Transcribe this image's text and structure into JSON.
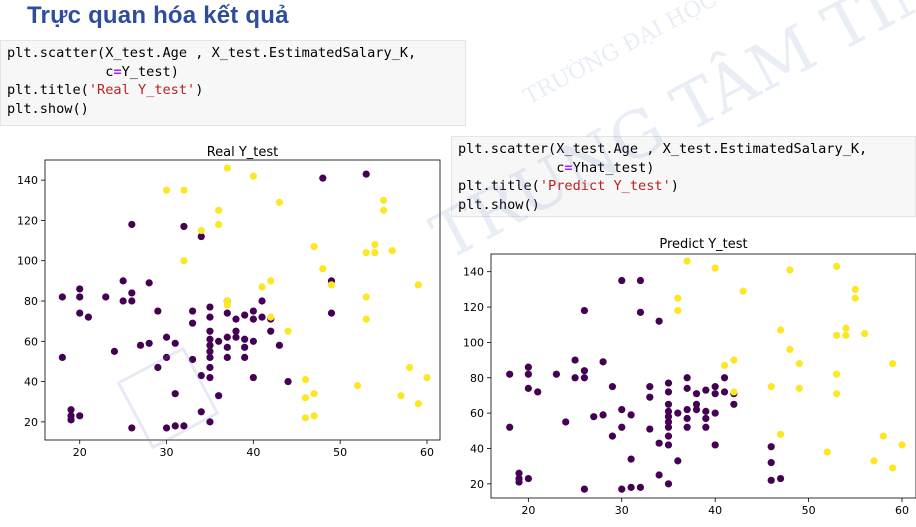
{
  "page": {
    "title": "Trực quan hóa kết quả"
  },
  "code_cells": [
    {
      "lines": [
        [
          {
            "t": "plain",
            "v": "plt.scatter(X_test.Age , X_test.EstimatedSalary_K,"
          }
        ],
        [
          {
            "t": "plain",
            "v": "            c"
          },
          {
            "t": "op",
            "v": "="
          },
          {
            "t": "plain",
            "v": "Y_test)"
          }
        ],
        [
          {
            "t": "plain",
            "v": "plt.title("
          },
          {
            "t": "str",
            "v": "'Real Y_test'"
          },
          {
            "t": "plain",
            "v": ")"
          }
        ],
        [
          {
            "t": "plain",
            "v": "plt.show()"
          }
        ]
      ]
    },
    {
      "lines": [
        [
          {
            "t": "plain",
            "v": "plt.scatter(X_test.Age , X_test.EstimatedSalary_K,"
          }
        ],
        [
          {
            "t": "plain",
            "v": "            c"
          },
          {
            "t": "op",
            "v": "="
          },
          {
            "t": "plain",
            "v": "Yhat_test)"
          }
        ],
        [
          {
            "t": "plain",
            "v": "plt.title("
          },
          {
            "t": "str",
            "v": "'Predict Y_test'"
          },
          {
            "t": "plain",
            "v": ")"
          }
        ],
        [
          {
            "t": "plain",
            "v": "plt.show()"
          }
        ]
      ]
    }
  ],
  "watermark": {
    "line1": "TRUNG TÂM TIN HỌC",
    "line2": "TRƯỜNG ĐẠI HỌC KHOA HỌC TỰ NHIÊN"
  },
  "colors": {
    "class0": "#440154",
    "class1": "#fde725",
    "title": "#2e4d9a"
  },
  "chart_data": [
    {
      "type": "scatter",
      "title": "Real Y_test",
      "xlabel": "",
      "ylabel": "",
      "xlim": [
        16,
        61.5
      ],
      "ylim": [
        11,
        150
      ],
      "xticks": [
        20,
        30,
        40,
        50,
        60
      ],
      "yticks": [
        20,
        40,
        60,
        80,
        100,
        120,
        140
      ],
      "grid": false,
      "legend": "none",
      "series": [
        {
          "class": 0,
          "points": [
            [
              18,
              82
            ],
            [
              18,
              52
            ],
            [
              19,
              26
            ],
            [
              19,
              21
            ],
            [
              19,
              23
            ],
            [
              20,
              86
            ],
            [
              20,
              82
            ],
            [
              20,
              74
            ],
            [
              20,
              23
            ],
            [
              21,
              72
            ],
            [
              23,
              82
            ],
            [
              24,
              55
            ],
            [
              25,
              90
            ],
            [
              25,
              80
            ],
            [
              26,
              84
            ],
            [
              26,
              80
            ],
            [
              26,
              118
            ],
            [
              26,
              17
            ],
            [
              27,
              58
            ],
            [
              28,
              89
            ],
            [
              28,
              59
            ],
            [
              29,
              75
            ],
            [
              29,
              47
            ],
            [
              30,
              62
            ],
            [
              30,
              17
            ],
            [
              30,
              52
            ],
            [
              31,
              59
            ],
            [
              31,
              34
            ],
            [
              31,
              18
            ],
            [
              32,
              117
            ],
            [
              32,
              18
            ],
            [
              33,
              75
            ],
            [
              33,
              51
            ],
            [
              33,
              69
            ],
            [
              34,
              112
            ],
            [
              34,
              43
            ],
            [
              34,
              25
            ],
            [
              35,
              77
            ],
            [
              35,
              72
            ],
            [
              35,
              65
            ],
            [
              35,
              61
            ],
            [
              35,
              58
            ],
            [
              35,
              55
            ],
            [
              35,
              52
            ],
            [
              35,
              47
            ],
            [
              35,
              42
            ],
            [
              35,
              20
            ],
            [
              36,
              60
            ],
            [
              36,
              33
            ],
            [
              37,
              80
            ],
            [
              37,
              74
            ],
            [
              37,
              62
            ],
            [
              37,
              57
            ],
            [
              37,
              52
            ],
            [
              38,
              71
            ],
            [
              38,
              62
            ],
            [
              38,
              65
            ],
            [
              39,
              73
            ],
            [
              39,
              61
            ],
            [
              39,
              57
            ],
            [
              39,
              52
            ],
            [
              40,
              75
            ],
            [
              40,
              71
            ],
            [
              40,
              60
            ],
            [
              40,
              42
            ],
            [
              41,
              72
            ],
            [
              41,
              80
            ],
            [
              42,
              65
            ],
            [
              42,
              71
            ],
            [
              43,
              58
            ],
            [
              44,
              40
            ],
            [
              48,
              141
            ],
            [
              49,
              90
            ],
            [
              49,
              74
            ],
            [
              53,
              143
            ]
          ]
        },
        {
          "class": 1,
          "points": [
            [
              30,
              135
            ],
            [
              32,
              135
            ],
            [
              32,
              100
            ],
            [
              34,
              115
            ],
            [
              36,
              118
            ],
            [
              36,
              125
            ],
            [
              37,
              146
            ],
            [
              37,
              80
            ],
            [
              37,
              78
            ],
            [
              40,
              142
            ],
            [
              41,
              87
            ],
            [
              42,
              90
            ],
            [
              42,
              72
            ],
            [
              43,
              129
            ],
            [
              44,
              65
            ],
            [
              46,
              22
            ],
            [
              46,
              32
            ],
            [
              46,
              41
            ],
            [
              47,
              23
            ],
            [
              47,
              107
            ],
            [
              47,
              34
            ],
            [
              48,
              96
            ],
            [
              49,
              88
            ],
            [
              52,
              38
            ],
            [
              53,
              104
            ],
            [
              53,
              71
            ],
            [
              53,
              82
            ],
            [
              54,
              104
            ],
            [
              54,
              108
            ],
            [
              55,
              130
            ],
            [
              55,
              125
            ],
            [
              56,
              105
            ],
            [
              57,
              33
            ],
            [
              58,
              47
            ],
            [
              59,
              29
            ],
            [
              59,
              88
            ],
            [
              60,
              42
            ]
          ]
        }
      ]
    },
    {
      "type": "scatter",
      "title": "Predict Y_test",
      "xlabel": "",
      "ylabel": "",
      "xlim": [
        16,
        61.5
      ],
      "ylim": [
        12,
        150
      ],
      "xticks": [
        20,
        30,
        40,
        50,
        60
      ],
      "yticks": [
        20,
        40,
        60,
        80,
        100,
        120,
        140
      ],
      "grid": false,
      "legend": "none",
      "series": [
        {
          "class": 0,
          "points": [
            [
              18,
              82
            ],
            [
              18,
              52
            ],
            [
              19,
              26
            ],
            [
              19,
              21
            ],
            [
              19,
              23
            ],
            [
              20,
              86
            ],
            [
              20,
              82
            ],
            [
              20,
              74
            ],
            [
              20,
              23
            ],
            [
              21,
              72
            ],
            [
              23,
              82
            ],
            [
              24,
              55
            ],
            [
              25,
              90
            ],
            [
              25,
              80
            ],
            [
              26,
              84
            ],
            [
              26,
              80
            ],
            [
              26,
              118
            ],
            [
              26,
              17
            ],
            [
              27,
              58
            ],
            [
              28,
              89
            ],
            [
              28,
              59
            ],
            [
              29,
              75
            ],
            [
              29,
              47
            ],
            [
              30,
              135
            ],
            [
              30,
              62
            ],
            [
              30,
              17
            ],
            [
              30,
              52
            ],
            [
              31,
              59
            ],
            [
              31,
              34
            ],
            [
              31,
              18
            ],
            [
              32,
              135
            ],
            [
              32,
              117
            ],
            [
              32,
              18
            ],
            [
              33,
              75
            ],
            [
              33,
              51
            ],
            [
              33,
              69
            ],
            [
              34,
              112
            ],
            [
              34,
              43
            ],
            [
              34,
              25
            ],
            [
              35,
              77
            ],
            [
              35,
              72
            ],
            [
              35,
              65
            ],
            [
              35,
              61
            ],
            [
              35,
              58
            ],
            [
              35,
              55
            ],
            [
              35,
              52
            ],
            [
              35,
              47
            ],
            [
              35,
              42
            ],
            [
              35,
              20
            ],
            [
              36,
              60
            ],
            [
              36,
              33
            ],
            [
              37,
              80
            ],
            [
              37,
              74
            ],
            [
              37,
              62
            ],
            [
              37,
              57
            ],
            [
              37,
              52
            ],
            [
              38,
              71
            ],
            [
              38,
              62
            ],
            [
              38,
              65
            ],
            [
              39,
              73
            ],
            [
              39,
              61
            ],
            [
              39,
              57
            ],
            [
              39,
              52
            ],
            [
              40,
              75
            ],
            [
              40,
              71
            ],
            [
              40,
              60
            ],
            [
              40,
              42
            ],
            [
              41,
              72
            ],
            [
              41,
              80
            ],
            [
              42,
              65
            ],
            [
              42,
              71
            ],
            [
              46,
              22
            ],
            [
              46,
              32
            ],
            [
              46,
              41
            ],
            [
              47,
              23
            ]
          ]
        },
        {
          "class": 1,
          "points": [
            [
              36,
              118
            ],
            [
              36,
              125
            ],
            [
              37,
              146
            ],
            [
              40,
              142
            ],
            [
              41,
              87
            ],
            [
              42,
              90
            ],
            [
              42,
              72
            ],
            [
              43,
              129
            ],
            [
              46,
              75
            ],
            [
              47,
              107
            ],
            [
              47,
              48
            ],
            [
              48,
              96
            ],
            [
              48,
              141
            ],
            [
              49,
              88
            ],
            [
              49,
              74
            ],
            [
              52,
              38
            ],
            [
              53,
              104
            ],
            [
              53,
              71
            ],
            [
              53,
              82
            ],
            [
              53,
              143
            ],
            [
              54,
              104
            ],
            [
              54,
              108
            ],
            [
              55,
              130
            ],
            [
              55,
              125
            ],
            [
              56,
              105
            ],
            [
              57,
              33
            ],
            [
              58,
              47
            ],
            [
              59,
              29
            ],
            [
              59,
              88
            ],
            [
              60,
              42
            ]
          ]
        }
      ]
    }
  ]
}
